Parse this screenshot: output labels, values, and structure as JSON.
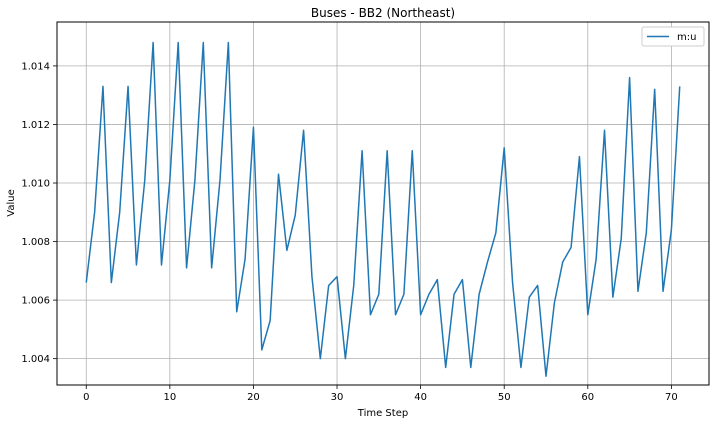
{
  "chart_data": {
    "type": "line",
    "title": "Buses - BB2 (Northeast)",
    "xlabel": "Time Step",
    "ylabel": "Value",
    "xlim": [
      -3.5,
      74.5
    ],
    "ylim": [
      1.0031,
      1.0155
    ],
    "xticks": [
      0,
      10,
      20,
      30,
      40,
      50,
      60,
      70
    ],
    "yticks": [
      1.004,
      1.006,
      1.008,
      1.01,
      1.012,
      1.014
    ],
    "ytick_labels": [
      "1.004",
      "1.006",
      "1.008",
      "1.010",
      "1.012",
      "1.014"
    ],
    "grid": true,
    "legend_position": "top-right",
    "series": [
      {
        "name": "m:u",
        "color": "#1f77b4",
        "x": [
          0,
          1,
          2,
          3,
          4,
          5,
          6,
          7,
          8,
          9,
          10,
          11,
          12,
          13,
          14,
          15,
          16,
          17,
          18,
          19,
          20,
          21,
          22,
          23,
          24,
          25,
          26,
          27,
          28,
          29,
          30,
          31,
          32,
          33,
          34,
          35,
          36,
          37,
          38,
          39,
          40,
          41,
          42,
          43,
          44,
          45,
          46,
          47,
          48,
          49,
          50,
          51,
          52,
          53,
          54,
          55,
          56,
          57,
          58,
          59,
          60,
          61,
          62,
          63,
          64,
          65,
          66,
          67,
          68,
          69,
          70,
          71
        ],
        "values": [
          1.0066,
          1.009,
          1.0133,
          1.0066,
          1.009,
          1.0133,
          1.0072,
          1.0101,
          1.0148,
          1.0072,
          1.0101,
          1.0148,
          1.0071,
          1.0101,
          1.0148,
          1.0071,
          1.0101,
          1.0148,
          1.0056,
          1.0074,
          1.0119,
          1.0043,
          1.0053,
          1.0103,
          1.0077,
          1.0089,
          1.0118,
          1.0068,
          1.004,
          1.0065,
          1.0068,
          1.004,
          1.0065,
          1.0111,
          1.0055,
          1.0062,
          1.0111,
          1.0055,
          1.0062,
          1.0111,
          1.0055,
          1.0062,
          1.0067,
          1.0037,
          1.0062,
          1.0067,
          1.0037,
          1.0062,
          1.0073,
          1.0083,
          1.0112,
          1.0066,
          1.0037,
          1.0061,
          1.0065,
          1.0034,
          1.0059,
          1.0073,
          1.0078,
          1.0109,
          1.0055,
          1.0074,
          1.0118,
          1.0061,
          1.0081,
          1.0136,
          1.0063,
          1.0083,
          1.0132,
          1.0063,
          1.0084,
          1.0133
        ]
      }
    ]
  }
}
